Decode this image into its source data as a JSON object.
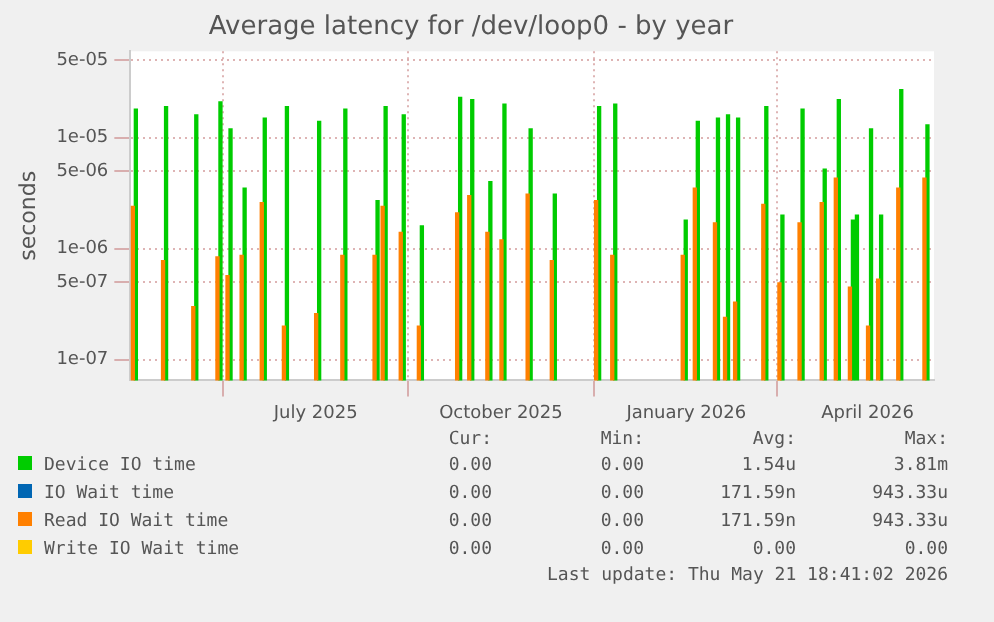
{
  "chart_data": {
    "type": "bar",
    "title": "Average latency for /dev/loop0 - by year",
    "ylabel": "seconds",
    "log": "y",
    "grid": true,
    "legend": "bottom",
    "xlim": [
      "2025-03-31",
      "2026-05-04"
    ],
    "xticks": [
      {
        "value": "2025-07-01",
        "label": "July 2025"
      },
      {
        "value": "2025-10-01",
        "label": "October 2025"
      },
      {
        "value": "2026-01-01",
        "label": "January 2026"
      },
      {
        "value": "2026-04-01",
        "label": "April 2026"
      }
    ],
    "ylim": [
      6.5e-08,
      6e-05
    ],
    "yticks": [
      {
        "value": 1e-07,
        "label": "1e-07"
      },
      {
        "value": 5e-07,
        "label": "5e-07"
      },
      {
        "value": 1e-06,
        "label": "1e-06"
      },
      {
        "value": 5e-06,
        "label": "5e-06"
      },
      {
        "value": 1e-05,
        "label": "1e-05"
      },
      {
        "value": 5e-05,
        "label": "5e-05"
      }
    ],
    "x": [
      "2025-04-02",
      "2025-04-17",
      "2025-05-02",
      "2025-05-14",
      "2025-05-19",
      "2025-05-26",
      "2025-06-05",
      "2025-06-16",
      "2025-07-02",
      "2025-07-15",
      "2025-07-31",
      "2025-08-04",
      "2025-08-13",
      "2025-08-22",
      "2025-09-10",
      "2025-09-16",
      "2025-09-25",
      "2025-10-02",
      "2025-10-15",
      "2025-10-27",
      "2025-11-18",
      "2025-11-26",
      "2025-12-31",
      "2026-01-06",
      "2026-01-16",
      "2026-01-21",
      "2026-01-26",
      "2026-02-09",
      "2026-02-17",
      "2026-02-27",
      "2026-03-10",
      "2026-03-17",
      "2026-03-24",
      "2026-03-26",
      "2026-04-02",
      "2026-04-07",
      "2026-04-17",
      "2026-04-30"
    ],
    "series": [
      {
        "name": "Device IO time",
        "color": "#00cc00",
        "values": [
          1.8e-05,
          1.9e-05,
          1.6e-05,
          2.1e-05,
          1.2e-05,
          3.5e-06,
          1.5e-05,
          1.9e-05,
          1.4e-05,
          1.8e-05,
          2.7e-06,
          1.9e-05,
          1.6e-05,
          1.6e-06,
          2.3e-05,
          2.2e-05,
          4e-06,
          2e-05,
          1.2e-05,
          3.1e-06,
          1.9e-05,
          2e-05,
          1.8e-06,
          1.4e-05,
          1.5e-05,
          1.6e-05,
          1.5e-05,
          1.9e-05,
          2e-06,
          1.8e-05,
          5.2e-06,
          2.2e-05,
          1.8e-06,
          2e-06,
          1.2e-05,
          2e-06,
          2.7e-05,
          1.3e-05
        ]
      },
      {
        "name": "IO Wait time",
        "color": "#0066b3",
        "values": [
          null,
          null,
          null,
          null,
          null,
          null,
          null,
          null,
          null,
          null,
          null,
          null,
          null,
          null,
          null,
          null,
          null,
          null,
          null,
          null,
          null,
          null,
          null,
          null,
          null,
          null,
          null,
          null,
          null,
          null,
          null,
          null,
          null,
          null,
          null,
          null,
          null,
          null
        ]
      },
      {
        "name": "Read IO Wait time",
        "color": "#ff8000",
        "values": [
          2.4e-06,
          7.8e-07,
          3e-07,
          8.4e-07,
          5.7e-07,
          8.7e-07,
          2.6e-06,
          2e-07,
          2.6e-07,
          8.7e-07,
          8.7e-07,
          2.4e-06,
          1.4e-06,
          2e-07,
          2.1e-06,
          3e-06,
          1.4e-06,
          1.2e-06,
          3.1e-06,
          7.8e-07,
          2.7e-06,
          8.7e-07,
          8.7e-07,
          3.5e-06,
          1.7e-06,
          2.4e-07,
          3.3e-07,
          2.5e-06,
          4.9e-07,
          1.7e-06,
          2.6e-06,
          4.3e-06,
          4.5e-07,
          null,
          2e-07,
          5.3e-07,
          3.5e-06,
          4.3e-06
        ]
      },
      {
        "name": "Write IO Wait time",
        "color": "#ffcc00",
        "values": [
          null,
          null,
          null,
          null,
          null,
          null,
          null,
          null,
          null,
          null,
          null,
          null,
          null,
          null,
          null,
          null,
          null,
          null,
          null,
          null,
          null,
          null,
          null,
          null,
          null,
          null,
          null,
          null,
          null,
          null,
          null,
          null,
          null,
          null,
          null,
          null,
          null,
          null
        ]
      }
    ],
    "annotations": [
      "Cur:",
      "Min:",
      "Avg:",
      "Max:",
      "0.00",
      "0.00",
      "1.54u",
      "3.81m",
      "0.00",
      "0.00",
      "171.59n",
      "943.33u",
      "0.00",
      "0.00",
      "171.59n",
      "943.33u",
      "0.00",
      "0.00",
      "0.00",
      "0.00",
      "Last update: Thu May 21 18:41:02 2026"
    ]
  }
}
